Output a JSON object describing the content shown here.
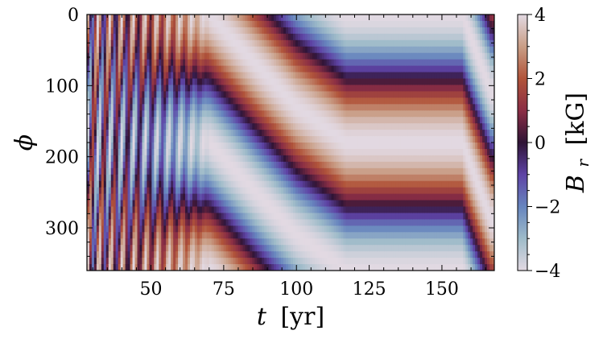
{
  "chart_data": {
    "type": "heatmap",
    "title": "",
    "xlabel_symbol": "t",
    "xlabel_unit": "[yr]",
    "ylabel_symbol": "ϕ",
    "colorbar_label_symbol": "B",
    "colorbar_label_subscript": "r",
    "colorbar_label_unit": "[kG]",
    "xlim": [
      28,
      168
    ],
    "ylim": [
      360,
      0
    ],
    "x_ticks": [
      50,
      75,
      100,
      125,
      150
    ],
    "y_ticks": [
      0,
      100,
      200,
      300
    ],
    "colorbar_range": [
      -4,
      4
    ],
    "colorbar_ticks": [
      4,
      2,
      0,
      -2,
      -4
    ],
    "colorbar_tick_labels": [
      "4",
      "2",
      "0",
      "−2",
      "−4"
    ],
    "colormap": "twilight_shifted",
    "colormap_stops": [
      {
        "value": -4,
        "color": "#e2d9e2"
      },
      {
        "value": -3,
        "color": "#9ebbc9"
      },
      {
        "value": -2,
        "color": "#6785be"
      },
      {
        "value": -1,
        "color": "#5e43a5"
      },
      {
        "value": 0,
        "color": "#2f1436"
      },
      {
        "value": 1,
        "color": "#8b2e45"
      },
      {
        "value": 2,
        "color": "#b1543a"
      },
      {
        "value": 3,
        "color": "#c99e86"
      },
      {
        "value": 4,
        "color": "#e2d9e2"
      }
    ],
    "pattern_phase_track": [
      {
        "t": 28,
        "phi": 0
      },
      {
        "t": 70,
        "phi": 0
      },
      {
        "t": 86,
        "phi": 70
      },
      {
        "t": 100,
        "phi": 130
      },
      {
        "t": 117,
        "phi": 180
      },
      {
        "t": 157,
        "phi": 180
      },
      {
        "t": 167,
        "phi": 290
      }
    ],
    "early_oscillation_period_yr": 4,
    "early_oscillation_end_t": 70
  }
}
